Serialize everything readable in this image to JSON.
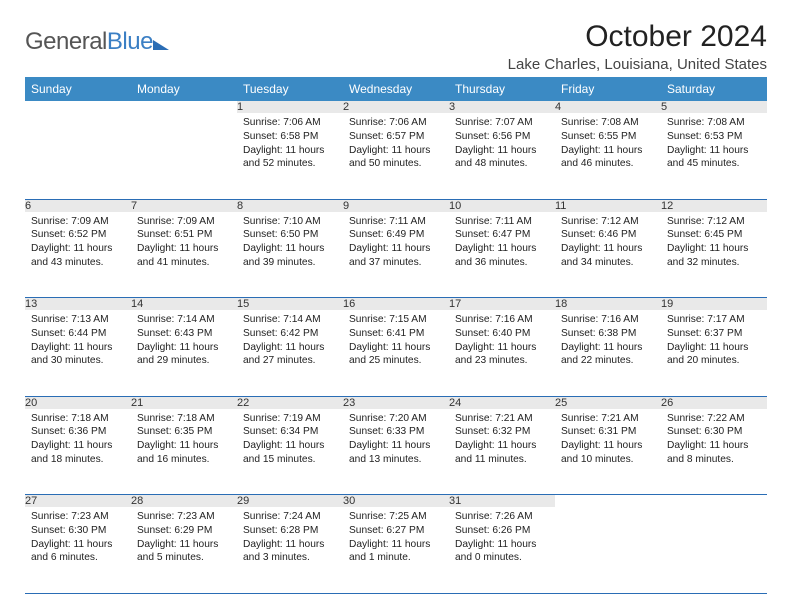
{
  "logo": {
    "word1": "General",
    "word2": "Blue"
  },
  "title": "October 2024",
  "location": "Lake Charles, Louisiana, United States",
  "colors": {
    "header_bg": "#3b8ac4",
    "header_text": "#ffffff",
    "daynum_bg": "#e9e9e9",
    "row_divider": "#2a6db5",
    "logo_accent": "#3b7fc4",
    "body_text": "#222222",
    "background": "#ffffff"
  },
  "typography": {
    "month_title_size_pt": 22,
    "location_size_pt": 11,
    "weekday_size_pt": 9,
    "daynum_size_pt": 8,
    "cell_body_size_pt": 7.7
  },
  "weekdays": [
    "Sunday",
    "Monday",
    "Tuesday",
    "Wednesday",
    "Thursday",
    "Friday",
    "Saturday"
  ],
  "weeks": [
    [
      null,
      null,
      {
        "n": "1",
        "sr": "7:06 AM",
        "ss": "6:58 PM",
        "dl": "11 hours and 52 minutes."
      },
      {
        "n": "2",
        "sr": "7:06 AM",
        "ss": "6:57 PM",
        "dl": "11 hours and 50 minutes."
      },
      {
        "n": "3",
        "sr": "7:07 AM",
        "ss": "6:56 PM",
        "dl": "11 hours and 48 minutes."
      },
      {
        "n": "4",
        "sr": "7:08 AM",
        "ss": "6:55 PM",
        "dl": "11 hours and 46 minutes."
      },
      {
        "n": "5",
        "sr": "7:08 AM",
        "ss": "6:53 PM",
        "dl": "11 hours and 45 minutes."
      }
    ],
    [
      {
        "n": "6",
        "sr": "7:09 AM",
        "ss": "6:52 PM",
        "dl": "11 hours and 43 minutes."
      },
      {
        "n": "7",
        "sr": "7:09 AM",
        "ss": "6:51 PM",
        "dl": "11 hours and 41 minutes."
      },
      {
        "n": "8",
        "sr": "7:10 AM",
        "ss": "6:50 PM",
        "dl": "11 hours and 39 minutes."
      },
      {
        "n": "9",
        "sr": "7:11 AM",
        "ss": "6:49 PM",
        "dl": "11 hours and 37 minutes."
      },
      {
        "n": "10",
        "sr": "7:11 AM",
        "ss": "6:47 PM",
        "dl": "11 hours and 36 minutes."
      },
      {
        "n": "11",
        "sr": "7:12 AM",
        "ss": "6:46 PM",
        "dl": "11 hours and 34 minutes."
      },
      {
        "n": "12",
        "sr": "7:12 AM",
        "ss": "6:45 PM",
        "dl": "11 hours and 32 minutes."
      }
    ],
    [
      {
        "n": "13",
        "sr": "7:13 AM",
        "ss": "6:44 PM",
        "dl": "11 hours and 30 minutes."
      },
      {
        "n": "14",
        "sr": "7:14 AM",
        "ss": "6:43 PM",
        "dl": "11 hours and 29 minutes."
      },
      {
        "n": "15",
        "sr": "7:14 AM",
        "ss": "6:42 PM",
        "dl": "11 hours and 27 minutes."
      },
      {
        "n": "16",
        "sr": "7:15 AM",
        "ss": "6:41 PM",
        "dl": "11 hours and 25 minutes."
      },
      {
        "n": "17",
        "sr": "7:16 AM",
        "ss": "6:40 PM",
        "dl": "11 hours and 23 minutes."
      },
      {
        "n": "18",
        "sr": "7:16 AM",
        "ss": "6:38 PM",
        "dl": "11 hours and 22 minutes."
      },
      {
        "n": "19",
        "sr": "7:17 AM",
        "ss": "6:37 PM",
        "dl": "11 hours and 20 minutes."
      }
    ],
    [
      {
        "n": "20",
        "sr": "7:18 AM",
        "ss": "6:36 PM",
        "dl": "11 hours and 18 minutes."
      },
      {
        "n": "21",
        "sr": "7:18 AM",
        "ss": "6:35 PM",
        "dl": "11 hours and 16 minutes."
      },
      {
        "n": "22",
        "sr": "7:19 AM",
        "ss": "6:34 PM",
        "dl": "11 hours and 15 minutes."
      },
      {
        "n": "23",
        "sr": "7:20 AM",
        "ss": "6:33 PM",
        "dl": "11 hours and 13 minutes."
      },
      {
        "n": "24",
        "sr": "7:21 AM",
        "ss": "6:32 PM",
        "dl": "11 hours and 11 minutes."
      },
      {
        "n": "25",
        "sr": "7:21 AM",
        "ss": "6:31 PM",
        "dl": "11 hours and 10 minutes."
      },
      {
        "n": "26",
        "sr": "7:22 AM",
        "ss": "6:30 PM",
        "dl": "11 hours and 8 minutes."
      }
    ],
    [
      {
        "n": "27",
        "sr": "7:23 AM",
        "ss": "6:30 PM",
        "dl": "11 hours and 6 minutes."
      },
      {
        "n": "28",
        "sr": "7:23 AM",
        "ss": "6:29 PM",
        "dl": "11 hours and 5 minutes."
      },
      {
        "n": "29",
        "sr": "7:24 AM",
        "ss": "6:28 PM",
        "dl": "11 hours and 3 minutes."
      },
      {
        "n": "30",
        "sr": "7:25 AM",
        "ss": "6:27 PM",
        "dl": "11 hours and 1 minute."
      },
      {
        "n": "31",
        "sr": "7:26 AM",
        "ss": "6:26 PM",
        "dl": "11 hours and 0 minutes."
      },
      null,
      null
    ]
  ],
  "labels": {
    "sunrise": "Sunrise:",
    "sunset": "Sunset:",
    "daylight": "Daylight:"
  }
}
